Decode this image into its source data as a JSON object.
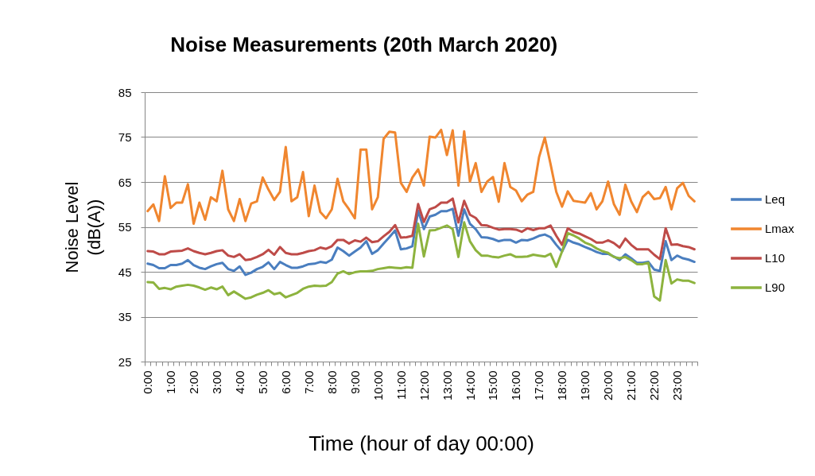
{
  "chart_data": {
    "type": "line",
    "title": "Noise Measurements (20th March 2020)",
    "xlabel": "Time (hour of day 00:00)",
    "ylabel": "Noise Level (dB(A))",
    "categories": [
      "0:00",
      null,
      null,
      null,
      "1:00",
      null,
      null,
      null,
      "2:00",
      null,
      null,
      null,
      "3:00",
      null,
      null,
      null,
      "4:00",
      null,
      null,
      null,
      "5:00",
      null,
      null,
      null,
      "6:00",
      null,
      null,
      null,
      "7:00",
      null,
      null,
      null,
      "8:00",
      null,
      null,
      null,
      "9:00",
      null,
      null,
      null,
      "10:00",
      null,
      null,
      null,
      "11:00",
      null,
      null,
      null,
      "12:00",
      null,
      null,
      null,
      "13:00",
      null,
      null,
      null,
      "14:00",
      null,
      null,
      null,
      "15:00",
      null,
      null,
      null,
      "16:00",
      null,
      null,
      null,
      "17:00",
      null,
      null,
      null,
      "18:00",
      null,
      null,
      null,
      "19:00",
      null,
      null,
      null,
      "20:00",
      null,
      null,
      null,
      "21:00",
      null,
      null,
      null,
      "22:00",
      null,
      null,
      null,
      "23:00",
      null,
      null,
      null
    ],
    "series": [
      {
        "name": "Leq",
        "color": "#4a7ebf",
        "values": [
          46.8,
          46.5,
          45.8,
          45.8,
          46.5,
          46.5,
          46.8,
          47.6,
          46.5,
          45.9,
          45.6,
          46.2,
          46.7,
          47.0,
          45.6,
          45.2,
          46.2,
          44.3,
          44.8,
          45.6,
          46.1,
          47.1,
          45.6,
          47.2,
          46.5,
          45.9,
          45.9,
          46.2,
          46.7,
          46.8,
          47.2,
          47.0,
          47.7,
          50.4,
          49.6,
          48.6,
          49.5,
          50.4,
          51.8,
          49.0,
          49.8,
          51.3,
          52.7,
          54.2,
          50.0,
          50.2,
          50.7,
          58.6,
          54.5,
          57.3,
          57.7,
          58.5,
          58.5,
          59.0,
          53.0,
          58.9,
          55.7,
          54.5,
          52.7,
          52.6,
          52.3,
          51.8,
          52.1,
          52.1,
          51.5,
          52.1,
          52.0,
          52.4,
          53.0,
          53.3,
          52.7,
          51.0,
          49.5,
          52.1,
          51.5,
          51.1,
          50.5,
          50.0,
          49.4,
          49.0,
          49.0,
          48.4,
          47.6,
          48.9,
          48.0,
          47.0,
          47.0,
          47.2,
          45.5,
          45.2,
          51.8,
          47.6,
          48.6,
          48.0,
          47.7,
          47.2
        ]
      },
      {
        "name": "Lmax",
        "color": "#f0862f",
        "values": [
          58.5,
          60.0,
          56.3,
          66.3,
          59.2,
          60.4,
          60.4,
          64.5,
          55.7,
          60.4,
          56.6,
          61.6,
          60.7,
          67.5,
          58.9,
          56.3,
          61.2,
          56.3,
          60.2,
          60.7,
          66.0,
          63.3,
          61.0,
          62.8,
          72.8,
          60.7,
          61.6,
          67.2,
          57.4,
          64.2,
          58.3,
          56.9,
          58.9,
          65.7,
          60.7,
          58.9,
          56.9,
          72.2,
          72.2,
          58.9,
          61.6,
          74.6,
          76.2,
          76.0,
          64.8,
          62.8,
          66.0,
          67.8,
          64.2,
          75.1,
          74.9,
          76.6,
          71.0,
          76.5,
          64.2,
          76.3,
          65.1,
          69.2,
          62.8,
          65.1,
          66.1,
          60.6,
          69.2,
          63.9,
          63.1,
          60.7,
          62.2,
          62.8,
          70.5,
          74.9,
          69.0,
          62.8,
          59.5,
          62.9,
          60.8,
          60.6,
          60.4,
          62.5,
          58.9,
          60.7,
          65.1,
          60.1,
          57.7,
          64.4,
          60.7,
          58.3,
          61.6,
          62.8,
          61.2,
          61.4,
          63.9,
          58.9,
          63.6,
          64.8,
          61.9,
          60.7
        ]
      },
      {
        "name": "L10",
        "color": "#be4b48",
        "values": [
          49.6,
          49.5,
          48.9,
          48.9,
          49.5,
          49.6,
          49.7,
          50.2,
          49.6,
          49.2,
          48.9,
          49.2,
          49.6,
          49.8,
          48.6,
          48.3,
          48.9,
          47.6,
          47.8,
          48.3,
          48.9,
          49.9,
          48.8,
          50.5,
          49.2,
          48.9,
          48.9,
          49.2,
          49.6,
          49.8,
          50.4,
          50.1,
          50.7,
          52.1,
          52.1,
          51.3,
          52.0,
          51.7,
          52.6,
          51.6,
          51.8,
          52.9,
          53.9,
          55.4,
          52.6,
          52.7,
          53.0,
          60.1,
          56.1,
          58.9,
          59.4,
          60.4,
          60.4,
          61.3,
          56.0,
          60.8,
          57.7,
          57.0,
          55.4,
          55.3,
          54.8,
          54.4,
          54.5,
          54.5,
          54.4,
          53.9,
          54.7,
          54.3,
          54.7,
          54.7,
          55.3,
          53.0,
          51.0,
          54.7,
          53.9,
          53.5,
          52.9,
          52.3,
          51.5,
          51.5,
          52.0,
          51.4,
          50.4,
          52.4,
          51.0,
          50.0,
          50.0,
          50.0,
          48.8,
          47.8,
          54.7,
          51.0,
          51.1,
          50.7,
          50.5,
          50.0
        ]
      },
      {
        "name": "L90",
        "color": "#8db33e",
        "values": [
          42.7,
          42.6,
          41.2,
          41.4,
          41.1,
          41.7,
          41.9,
          42.1,
          41.9,
          41.5,
          41.0,
          41.5,
          41.1,
          41.7,
          39.8,
          40.6,
          39.8,
          39.0,
          39.3,
          39.9,
          40.3,
          40.9,
          40.0,
          40.3,
          39.3,
          39.8,
          40.3,
          41.2,
          41.7,
          41.9,
          41.8,
          41.9,
          42.7,
          44.6,
          45.1,
          44.5,
          44.9,
          45.1,
          45.1,
          45.2,
          45.6,
          45.8,
          46.0,
          45.9,
          45.8,
          46.0,
          45.9,
          55.7,
          48.4,
          54.2,
          54.3,
          54.8,
          55.3,
          54.5,
          48.3,
          56.0,
          51.8,
          49.8,
          48.6,
          48.6,
          48.3,
          48.2,
          48.6,
          48.9,
          48.3,
          48.3,
          48.4,
          48.8,
          48.6,
          48.4,
          49.0,
          46.1,
          49.5,
          53.6,
          53.1,
          52.4,
          51.5,
          51.0,
          50.2,
          49.6,
          49.2,
          48.3,
          48.0,
          48.3,
          47.6,
          46.7,
          46.7,
          47.0,
          39.5,
          38.6,
          47.6,
          42.4,
          43.3,
          43.0,
          43.0,
          42.5
        ]
      }
    ],
    "ylim": [
      25,
      85
    ],
    "yticks": [
      25,
      35,
      45,
      55,
      65,
      75,
      85
    ],
    "grid": "y",
    "legend": "right"
  }
}
